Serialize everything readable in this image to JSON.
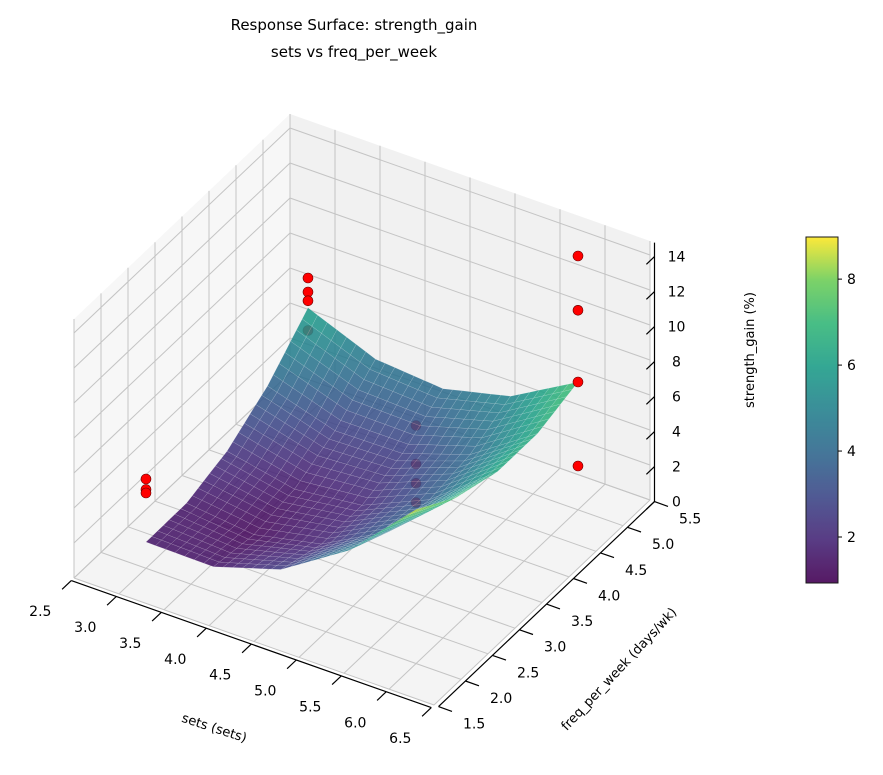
{
  "chart_data": {
    "type": "surface",
    "title": [
      "Response Surface: strength_gain",
      "sets vs freq_per_week"
    ],
    "xlabel": "sets (sets)",
    "ylabel": "freq_per_week (days/wk)",
    "zlabel": "strength_gain (%)",
    "xlim": [
      2.5,
      6.5
    ],
    "ylim": [
      1.5,
      5.5
    ],
    "zlim": [
      0,
      14.8
    ],
    "xticks": [
      "2.5",
      "3.0",
      "3.5",
      "4.0",
      "4.5",
      "5.0",
      "5.5",
      "6.0",
      "6.5"
    ],
    "yticks": [
      "1.5",
      "2.0",
      "2.5",
      "3.0",
      "3.5",
      "4.0",
      "4.5",
      "5.0",
      "5.5"
    ],
    "zticks": [
      "0",
      "2",
      "4",
      "6",
      "8",
      "10",
      "12",
      "14"
    ],
    "grid": true,
    "surface": {
      "colormap": "viridis",
      "x": [
        3,
        3.75,
        4.5,
        5.25,
        6
      ],
      "y": [
        2,
        2.75,
        3.5,
        4.25,
        5
      ],
      "z": [
        [
          1.5,
          1.45,
          2.65,
          5.1,
          8.8
        ],
        [
          1.53,
          1.09,
          1.91,
          3.98,
          7.3
        ],
        [
          2.3,
          1.49,
          1.93,
          3.61,
          6.55
        ],
        [
          3.83,
          2.63,
          2.69,
          3.99,
          6.55
        ],
        [
          6.1,
          4.53,
          4.2,
          5.13,
          7.3
        ]
      ]
    },
    "scatter": {
      "color": "#ff0000",
      "points": [
        [
          3,
          2,
          5.1
        ],
        [
          3,
          2,
          4.5
        ],
        [
          3,
          2,
          4.3
        ],
        [
          3,
          5,
          7.8
        ],
        [
          3,
          5,
          7.0
        ],
        [
          3,
          5,
          6.5
        ],
        [
          3,
          5,
          4.8
        ],
        [
          6,
          5,
          14.5
        ],
        [
          6,
          5,
          11.4
        ],
        [
          6,
          5,
          7.3
        ],
        [
          6,
          5,
          2.5
        ],
        [
          6,
          2,
          13.6
        ],
        [
          6,
          2,
          11.4
        ],
        [
          6,
          2,
          10.3
        ],
        [
          6,
          2,
          9.2
        ]
      ]
    },
    "colorbar": {
      "range": [
        0.93,
        8.98
      ],
      "ticks": [
        "2",
        "4",
        "6",
        "8"
      ]
    }
  }
}
